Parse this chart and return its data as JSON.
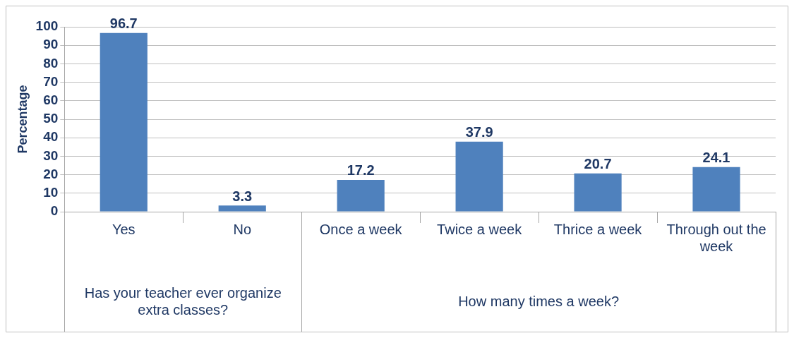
{
  "chart_data": {
    "type": "bar",
    "ylabel": "Percentage",
    "categories": [
      "Yes",
      "No",
      "Once a week",
      "Twice a week",
      "Thrice a week",
      "Through out the week"
    ],
    "values": [
      96.7,
      3.3,
      17.2,
      37.9,
      20.7,
      24.1
    ],
    "color": "#4f81bd",
    "ylim": [
      0,
      100
    ],
    "yticks": [
      0,
      10,
      20,
      30,
      40,
      50,
      60,
      70,
      80,
      90,
      100
    ],
    "grid": "y",
    "legend": false,
    "data_labels": true,
    "annotations": [
      "Has your teacher ever organize extra classes?",
      "How many times a week?"
    ]
  }
}
